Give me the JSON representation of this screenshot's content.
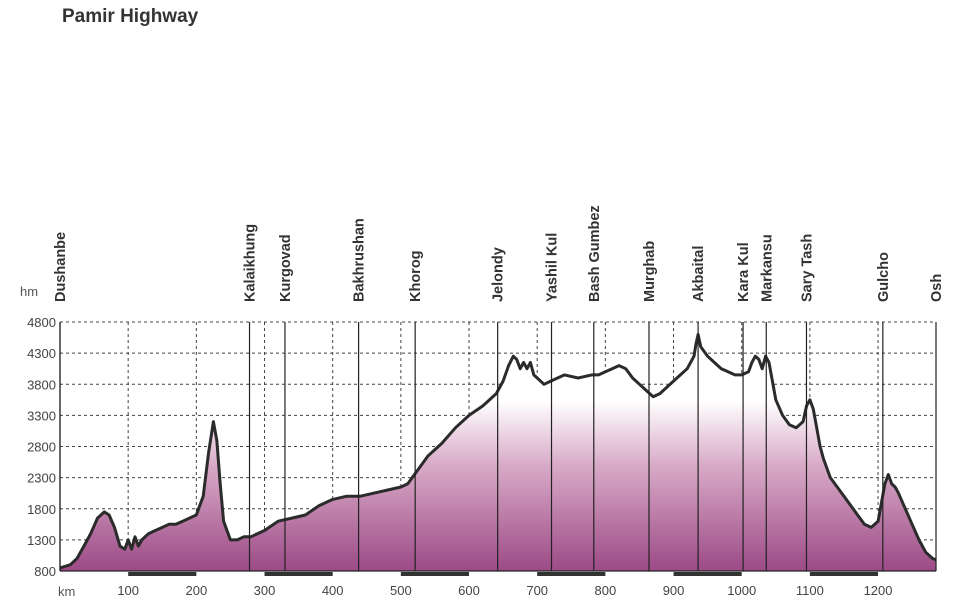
{
  "chart_data": {
    "type": "area",
    "title": "Pamir Highway",
    "ylabel": "hm",
    "xlabel": "km",
    "xlim": [
      0,
      1285
    ],
    "ylim": [
      800,
      4800
    ],
    "yticks": [
      800,
      1300,
      1800,
      2300,
      2800,
      3300,
      3800,
      4300,
      4800
    ],
    "ytick_labels": [
      "800",
      "1300",
      "1800",
      "2300",
      "2800",
      "3300",
      "3800",
      "4300",
      "4800"
    ],
    "xticks": [
      100,
      200,
      300,
      400,
      500,
      600,
      700,
      800,
      900,
      1000,
      1100,
      1200
    ],
    "xtick_labels": [
      "100",
      "200",
      "300",
      "400",
      "500",
      "600",
      "700",
      "800",
      "900",
      "1000",
      "1100",
      "1200"
    ],
    "grid": true,
    "fill_color_top": "#ffffff",
    "fill_color_bottom": "#9c4a86",
    "line_color": "#2b2b2b",
    "places": [
      {
        "name": "Dushanbe",
        "km": 0
      },
      {
        "name": "Kalaikhung",
        "km": 278
      },
      {
        "name": "Kurgovad",
        "km": 330
      },
      {
        "name": "Bakhrushan",
        "km": 438
      },
      {
        "name": "Khorog",
        "km": 521
      },
      {
        "name": "Jelondy",
        "km": 642
      },
      {
        "name": "Yashil Kul",
        "km": 721
      },
      {
        "name": "Bash Gumbez",
        "km": 783
      },
      {
        "name": "Murghab",
        "km": 864
      },
      {
        "name": "Akbaital",
        "km": 936
      },
      {
        "name": "Kara Kul",
        "km": 1002
      },
      {
        "name": "Markansu",
        "km": 1036
      },
      {
        "name": "Sary Tash",
        "km": 1095
      },
      {
        "name": "Gulcho",
        "km": 1207
      },
      {
        "name": "Osh",
        "km": 1285
      }
    ],
    "series": [
      {
        "x": [
          0,
          15,
          25,
          35,
          45,
          55,
          65,
          72,
          80,
          88,
          95,
          100,
          105,
          110,
          115,
          120,
          130,
          140,
          150,
          160,
          170,
          180,
          190,
          200,
          210,
          218,
          225,
          230,
          235,
          240,
          250,
          260,
          270,
          280,
          290,
          300,
          320,
          340,
          360,
          380,
          400,
          420,
          440,
          460,
          480,
          500,
          510,
          520,
          540,
          560,
          580,
          600,
          620,
          640,
          650,
          658,
          665,
          670,
          675,
          680,
          685,
          690,
          695,
          700,
          710,
          720,
          730,
          740,
          760,
          780,
          790,
          800,
          810,
          820,
          830,
          840,
          850,
          860,
          870,
          880,
          890,
          900,
          910,
          920,
          930,
          933,
          936,
          940,
          950,
          960,
          970,
          980,
          990,
          1000,
          1010,
          1015,
          1020,
          1025,
          1030,
          1035,
          1040,
          1045,
          1050,
          1060,
          1070,
          1080,
          1090,
          1095,
          1100,
          1105,
          1110,
          1115,
          1120,
          1130,
          1140,
          1150,
          1160,
          1170,
          1180,
          1190,
          1200,
          1205,
          1210,
          1215,
          1220,
          1225,
          1230,
          1240,
          1250,
          1260,
          1270,
          1280,
          1285
        ],
        "y": [
          850,
          900,
          1000,
          1200,
          1400,
          1650,
          1750,
          1700,
          1500,
          1200,
          1150,
          1300,
          1150,
          1350,
          1200,
          1300,
          1400,
          1450,
          1500,
          1550,
          1550,
          1600,
          1650,
          1700,
          2000,
          2700,
          3200,
          2900,
          2200,
          1600,
          1300,
          1300,
          1350,
          1350,
          1400,
          1450,
          1600,
          1650,
          1700,
          1850,
          1950,
          2000,
          2000,
          2050,
          2100,
          2150,
          2200,
          2350,
          2650,
          2850,
          3100,
          3300,
          3450,
          3650,
          3850,
          4100,
          4250,
          4200,
          4050,
          4150,
          4050,
          4150,
          3950,
          3900,
          3800,
          3850,
          3900,
          3950,
          3900,
          3950,
          3950,
          4000,
          4050,
          4100,
          4050,
          3900,
          3800,
          3700,
          3600,
          3650,
          3750,
          3850,
          3950,
          4050,
          4250,
          4450,
          4600,
          4400,
          4250,
          4150,
          4050,
          4000,
          3950,
          3950,
          4000,
          4150,
          4250,
          4200,
          4050,
          4250,
          4150,
          3850,
          3550,
          3300,
          3150,
          3100,
          3200,
          3450,
          3550,
          3400,
          3100,
          2800,
          2600,
          2300,
          2150,
          2000,
          1850,
          1700,
          1550,
          1500,
          1600,
          1900,
          2200,
          2350,
          2200,
          2150,
          2050,
          1800,
          1550,
          1300,
          1100,
          1000,
          980
        ]
      }
    ]
  }
}
